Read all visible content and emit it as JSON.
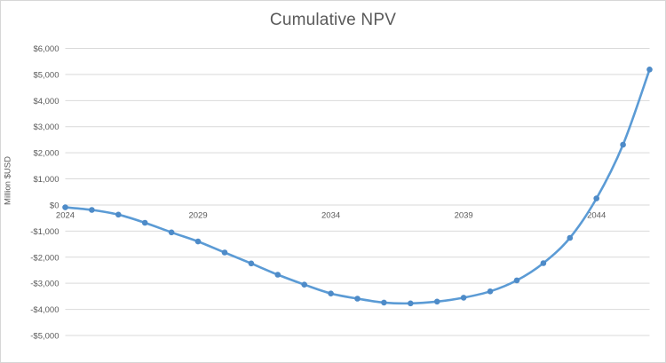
{
  "title": "Cumulative NPV",
  "chart_data": {
    "type": "line",
    "title": "Cumulative NPV",
    "xlabel": "",
    "ylabel": "Million $USD",
    "x": [
      2024,
      2025,
      2026,
      2027,
      2028,
      2029,
      2030,
      2031,
      2032,
      2033,
      2034,
      2035,
      2036,
      2037,
      2038,
      2039,
      2040,
      2041,
      2042,
      2043,
      2044,
      2045,
      2046
    ],
    "series": [
      {
        "name": "Cumulative NPV",
        "values": [
          -90,
          -190,
          -370,
          -680,
          -1050,
          -1400,
          -1820,
          -2240,
          -2670,
          -3050,
          -3390,
          -3590,
          -3740,
          -3770,
          -3700,
          -3550,
          -3310,
          -2890,
          -2230,
          -1260,
          250,
          2310,
          5190
        ]
      }
    ],
    "ylim": [
      -5000,
      6000
    ],
    "ytick_values": [
      6000,
      5000,
      4000,
      3000,
      2000,
      1000,
      0,
      -1000,
      -2000,
      -3000,
      -4000,
      -5000
    ],
    "ytick_labels": [
      "$6,000",
      "$5,000",
      "$4,000",
      "$3,000",
      "$2,000",
      "$1,000",
      "$0",
      "-$1,000",
      "-$2,000",
      "-$3,000",
      "-$4,000",
      "-$5,000"
    ],
    "xtick_values": [
      2024,
      2029,
      2034,
      2039,
      2044
    ],
    "xtick_labels": [
      "2024",
      "2029",
      "2034",
      "2039",
      "2044"
    ],
    "grid": true,
    "legend_position": "none",
    "colors": {
      "line": "#5b9bd5",
      "marker": "#4e8bc8",
      "gridline": "#d9d9d9",
      "axis_text": "#595959",
      "title_text": "#595959",
      "background": "#ffffff"
    }
  }
}
